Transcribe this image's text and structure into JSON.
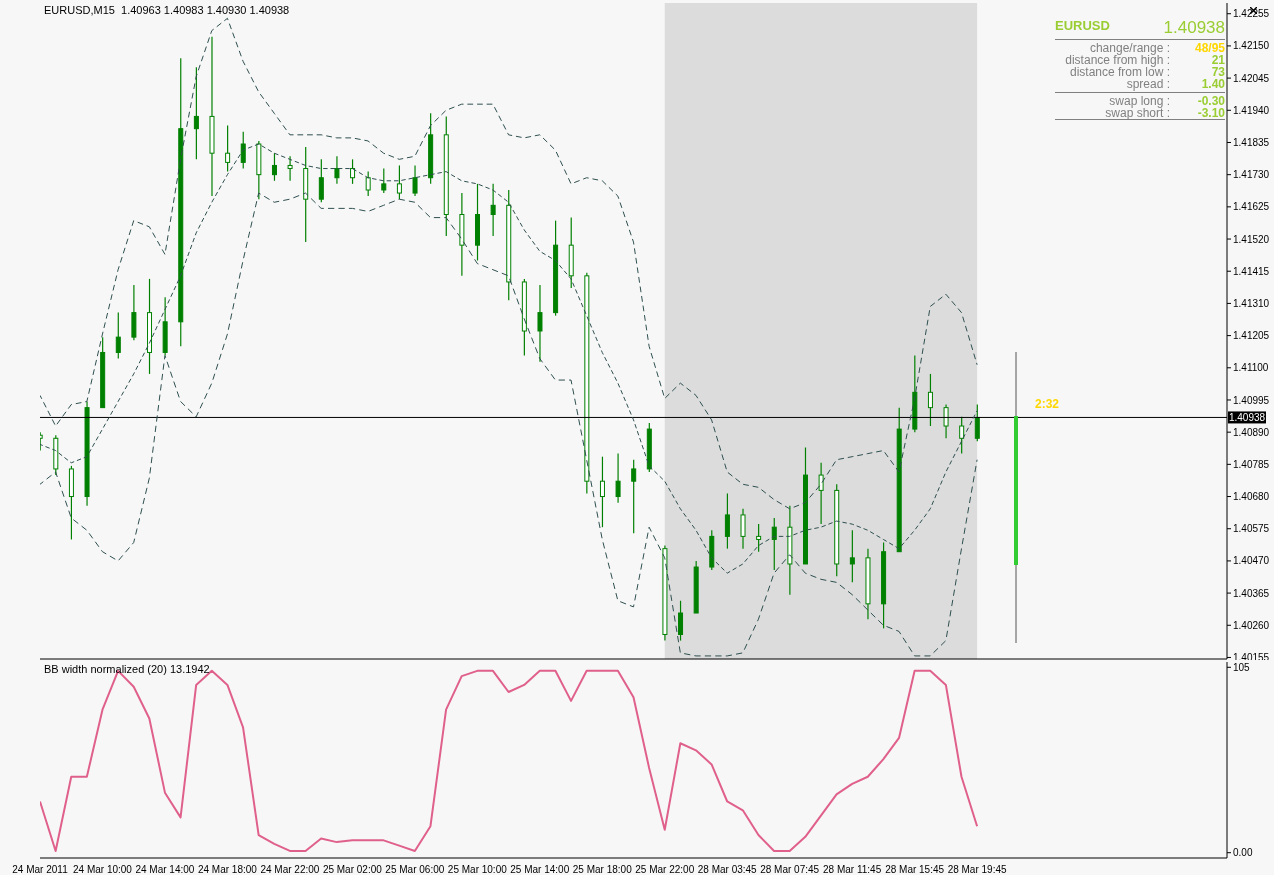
{
  "chart_data": [
    {
      "type": "candlestick",
      "title": "EURUSD,M15  1.40963 1.40983 1.40930 1.40938",
      "categories": [
        "24 Mar 2011",
        null,
        null,
        null,
        "24 Mar 10:00",
        null,
        null,
        null,
        "24 Mar 14:00",
        null,
        null,
        null,
        "24 Mar 18:00",
        null,
        null,
        null,
        "24 Mar 22:00",
        null,
        null,
        null,
        "25 Mar 02:00",
        null,
        null,
        null,
        "25 Mar 06:00",
        null,
        null,
        null,
        "25 Mar 10:00",
        null,
        null,
        null,
        "25 Mar 14:00",
        null,
        null,
        null,
        "25 Mar 18:00",
        null,
        null,
        null,
        "25 Mar 22:00",
        null,
        null,
        null,
        "28 Mar 03:45",
        null,
        null,
        null,
        "28 Mar 07:45",
        null,
        null,
        null,
        "28 Mar 11:45",
        null,
        null,
        null,
        "28 Mar 15:45",
        null,
        null,
        null,
        "28 Mar 19:45",
        null,
        null,
        null,
        null,
        null,
        null,
        null,
        null,
        null,
        null,
        null,
        null,
        null,
        null,
        null,
        null
      ],
      "color": "#008000",
      "ohlc": [
        [
          1.4088,
          1.4089,
          1.4083,
          1.4087
        ],
        [
          1.4087,
          1.4088,
          1.4075,
          1.4077
        ],
        [
          1.4077,
          1.4078,
          1.4054,
          1.4068
        ],
        [
          1.4068,
          1.4099,
          1.4065,
          1.4097
        ],
        [
          1.4097,
          1.412,
          1.4097,
          1.4115
        ],
        [
          1.4115,
          1.4128,
          1.4113,
          1.412
        ],
        [
          1.412,
          1.4137,
          1.4119,
          1.4128
        ],
        [
          1.4128,
          1.4139,
          1.4108,
          1.4115
        ],
        [
          1.4115,
          1.4133,
          1.4114,
          1.4125
        ],
        [
          1.4125,
          1.4211,
          1.4117,
          1.4188
        ],
        [
          1.4188,
          1.4208,
          1.4178,
          1.4192
        ],
        [
          1.4192,
          1.4218,
          1.4166,
          1.418
        ],
        [
          1.418,
          1.4189,
          1.4174,
          1.4177
        ],
        [
          1.4177,
          1.4187,
          1.4175,
          1.4183
        ],
        [
          1.4183,
          1.4184,
          1.4165,
          1.4173
        ],
        [
          1.4173,
          1.418,
          1.4171,
          1.4176
        ],
        [
          1.4176,
          1.4179,
          1.4171,
          1.4175
        ],
        [
          1.4175,
          1.4182,
          1.4151,
          1.4165
        ],
        [
          1.4165,
          1.4178,
          1.4164,
          1.4172
        ],
        [
          1.4172,
          1.4179,
          1.417,
          1.4175
        ],
        [
          1.4175,
          1.4178,
          1.417,
          1.4172
        ],
        [
          1.4172,
          1.4174,
          1.4166,
          1.4168
        ],
        [
          1.4168,
          1.4175,
          1.4167,
          1.417
        ],
        [
          1.417,
          1.4176,
          1.4165,
          1.4167
        ],
        [
          1.4167,
          1.4176,
          1.4166,
          1.4172
        ],
        [
          1.4172,
          1.4193,
          1.417,
          1.4186
        ],
        [
          1.4186,
          1.4192,
          1.4153,
          1.416
        ],
        [
          1.416,
          1.4167,
          1.414,
          1.415
        ],
        [
          1.415,
          1.417,
          1.4145,
          1.416
        ],
        [
          1.416,
          1.417,
          1.4153,
          1.4163
        ],
        [
          1.4163,
          1.4168,
          1.4132,
          1.4138
        ],
        [
          1.4138,
          1.4139,
          1.4114,
          1.4122
        ],
        [
          1.4122,
          1.4137,
          1.4112,
          1.4128
        ],
        [
          1.4128,
          1.4158,
          1.4127,
          1.415
        ],
        [
          1.415,
          1.4159,
          1.4136,
          1.414
        ],
        [
          1.414,
          1.4141,
          1.4069,
          1.4073
        ],
        [
          1.4073,
          1.4081,
          1.4058,
          1.4068
        ],
        [
          1.4068,
          1.4082,
          1.4066,
          1.4073
        ],
        [
          1.4073,
          1.408,
          1.4056,
          1.4077
        ],
        [
          1.4077,
          1.4092,
          1.4076,
          1.409
        ],
        [
          1.4051,
          1.4052,
          1.4021,
          1.4023
        ],
        [
          1.4023,
          1.4034,
          1.4021,
          1.403
        ],
        [
          1.403,
          1.4047,
          1.403,
          1.4045
        ],
        [
          1.4045,
          1.4057,
          1.4044,
          1.4055
        ],
        [
          1.4055,
          1.4069,
          1.4051,
          1.4062
        ],
        [
          1.4062,
          1.4064,
          1.4051,
          1.4055
        ],
        [
          1.4055,
          1.4059,
          1.405,
          1.4054
        ],
        [
          1.4054,
          1.4061,
          1.4044,
          1.4058
        ],
        [
          1.4058,
          1.4065,
          1.4036,
          1.4046
        ],
        [
          1.4046,
          1.4084,
          1.4046,
          1.4075
        ],
        [
          1.4075,
          1.4079,
          1.4059,
          1.407
        ],
        [
          1.407,
          1.4072,
          1.4042,
          1.4046
        ],
        [
          1.4046,
          1.4057,
          1.404,
          1.4048
        ],
        [
          1.4048,
          1.4051,
          1.4028,
          1.4033
        ],
        [
          1.4033,
          1.4053,
          1.4025,
          1.405
        ],
        [
          1.405,
          1.4097,
          1.405,
          1.409
        ],
        [
          1.409,
          1.4114,
          1.4089,
          1.4102
        ],
        [
          1.4102,
          1.4108,
          1.4091,
          1.4097
        ],
        [
          1.4097,
          1.4098,
          1.4087,
          1.4091
        ],
        [
          1.4091,
          1.4094,
          1.4082,
          1.4087
        ],
        [
          1.4087,
          1.4098,
          1.4086,
          1.40938
        ],
        null,
        null,
        null,
        null,
        null,
        null,
        null,
        null,
        null,
        null,
        null,
        null,
        null,
        null,
        null,
        null
      ],
      "line_style": "dashed",
      "series": [
        {
          "type": "line",
          "color": "#2f4f4f",
          "values": [
            1.4101,
            1.4091,
            1.4098,
            1.4099,
            1.4121,
            1.4142,
            1.4158,
            1.4156,
            1.4147,
            1.4178,
            1.4205,
            1.422,
            1.4224,
            1.421,
            1.42,
            1.4193,
            1.4186,
            1.4186,
            1.4186,
            1.4185,
            1.4185,
            1.4184,
            1.418,
            1.4178,
            1.4179,
            1.4189,
            1.4194,
            1.4196,
            1.4196,
            1.4196,
            1.4186,
            1.4185,
            1.4186,
            1.4181,
            1.417,
            1.4172,
            1.4171,
            1.4166,
            1.4151,
            1.4117,
            1.41,
            1.4105,
            1.4101,
            1.4093,
            1.4076,
            1.4072,
            1.4071,
            1.4067,
            1.4064,
            1.4066,
            1.4072,
            1.408,
            1.4081,
            1.4082,
            1.4083,
            1.4076,
            1.41,
            1.413,
            1.4134,
            1.4128,
            1.4111,
            null,
            null,
            null,
            null,
            null,
            null,
            null,
            null,
            null,
            null,
            null,
            null,
            null,
            null,
            null,
            null
          ]
        },
        {
          "type": "line",
          "color": "#2f4f4f",
          "values": [
            1.4085,
            1.4083,
            1.4079,
            1.4081,
            1.409,
            1.4099,
            1.4108,
            1.4118,
            1.4129,
            1.414,
            1.4154,
            1.4164,
            1.4173,
            1.4181,
            1.4183,
            1.418,
            1.4178,
            1.4176,
            1.4175,
            1.4175,
            1.4175,
            1.4172,
            1.4171,
            1.4171,
            1.4172,
            1.4173,
            1.4174,
            1.4171,
            1.417,
            1.4168,
            1.4164,
            1.4155,
            1.4148,
            1.4145,
            1.4139,
            1.4127,
            1.4115,
            1.4105,
            1.4093,
            1.4078,
            1.4073,
            1.4064,
            1.4057,
            1.4048,
            1.4043,
            1.4046,
            1.4052,
            1.4055,
            1.4055,
            1.4057,
            1.4058,
            1.406,
            1.4059,
            1.4057,
            1.4054,
            1.4051,
            1.4057,
            1.4064,
            1.4076,
            1.4086,
            1.4096,
            null,
            null,
            null,
            null,
            null,
            null,
            null,
            null,
            null,
            null,
            null,
            null,
            null,
            null,
            null,
            null
          ]
        },
        {
          "type": "line",
          "color": "#2f4f4f",
          "values": [
            1.4072,
            1.4076,
            1.4061,
            1.4057,
            1.405,
            1.4047,
            1.4053,
            1.4074,
            1.4114,
            1.4099,
            1.4094,
            1.4105,
            1.4121,
            1.4145,
            1.4167,
            1.4164,
            1.4165,
            1.4167,
            1.4162,
            1.4162,
            1.4162,
            1.4161,
            1.4163,
            1.4165,
            1.4164,
            1.4159,
            1.4159,
            1.4152,
            1.4144,
            1.4142,
            1.414,
            1.4126,
            1.4113,
            1.4106,
            1.4106,
            1.408,
            1.4054,
            1.4034,
            1.4032,
            1.4058,
            1.4048,
            1.4017,
            1.4016,
            1.4016,
            1.4016,
            1.4017,
            1.4028,
            1.4043,
            1.4049,
            1.4043,
            1.4041,
            1.404,
            1.4036,
            1.4031,
            1.4026,
            1.4024,
            1.4016,
            1.4016,
            1.4021,
            1.4051,
            1.408,
            null,
            null,
            null,
            null,
            null,
            null,
            null,
            null,
            null,
            null,
            null,
            null,
            null,
            null,
            null,
            null
          ]
        }
      ],
      "ylim": [
        1.4015,
        1.4229
      ],
      "yticks": [
        1.42255,
        {
          "value": 1.4215,
          "label": "1.42150"
        },
        1.42045,
        {
          "value": 1.4194,
          "label": "1.41940"
        },
        1.41835,
        {
          "value": 1.4173,
          "label": "1.41730"
        },
        1.41625,
        {
          "value": 1.4152,
          "label": "1.41520"
        },
        1.41415,
        {
          "value": 1.4131,
          "label": "1.41310"
        },
        1.41205,
        {
          "value": 1.411,
          "label": "1.41100"
        },
        1.40995,
        {
          "value": 1.4089,
          "label": "1.40890"
        },
        1.40785,
        {
          "value": 1.4068,
          "label": "1.40680"
        },
        1.40575,
        {
          "value": 1.4047,
          "label": "1.40470"
        },
        1.40365,
        {
          "value": 1.4026,
          "label": "1.40260"
        },
        1.40155
      ],
      "tick_labels": "y",
      "ref_lines": [
        {
          "axis": "y",
          "value": 1.40938,
          "label": "1.40938",
          "color": "#000000"
        }
      ],
      "bands": [
        {
          "axis": "x",
          "from": "25 Mar 22:00",
          "to": "28 Mar 19:45",
          "color": "#dcdcdc"
        }
      ],
      "annotations": [
        "EURUSD",
        "1.40938",
        "change/range :",
        "48/95",
        "distance from high :",
        "21",
        "distance from low :",
        "73",
        "spread :",
        "1.40",
        "swap long :",
        "-0.30",
        "swap short :",
        "-3.10",
        "2:32"
      ]
    },
    {
      "type": "line",
      "title": "BB width normalized (20) 13.1942",
      "categories": [
        "24 Mar 2011",
        null,
        null,
        null,
        "24 Mar 10:00",
        null,
        null,
        null,
        "24 Mar 14:00",
        null,
        null,
        null,
        "24 Mar 18:00",
        null,
        null,
        null,
        "24 Mar 22:00",
        null,
        null,
        null,
        "25 Mar 02:00",
        null,
        null,
        null,
        "25 Mar 06:00",
        null,
        null,
        null,
        "25 Mar 10:00",
        null,
        null,
        null,
        "25 Mar 14:00",
        null,
        null,
        null,
        "25 Mar 18:00",
        null,
        null,
        null,
        "25 Mar 22:00",
        null,
        null,
        null,
        "28 Mar 03:45",
        null,
        null,
        null,
        "28 Mar 07:45",
        null,
        null,
        null,
        "28 Mar 11:45",
        null,
        null,
        null,
        "28 Mar 15:45",
        null,
        null,
        null,
        "28 Mar 19:45",
        null,
        null,
        null,
        null,
        null,
        null,
        null,
        null,
        null,
        null,
        null,
        null,
        null,
        null,
        null,
        null
      ],
      "color": "#e0608c",
      "values": [
        29,
        1,
        43,
        43,
        81,
        103,
        94,
        76,
        34,
        20,
        95,
        103,
        95,
        71,
        10,
        5,
        1,
        1,
        8,
        6,
        7,
        7,
        7,
        4,
        1,
        15,
        81,
        100,
        103,
        103,
        91,
        95,
        103,
        103,
        86,
        103,
        103,
        103,
        88,
        48,
        13,
        62,
        58,
        50,
        29,
        24,
        10,
        1,
        1,
        9,
        21,
        33,
        39,
        43,
        53,
        65,
        103,
        103,
        95,
        43,
        15,
        null,
        null,
        null,
        null,
        null,
        null,
        null,
        null,
        null,
        null,
        null,
        null,
        null,
        null,
        null,
        null
      ],
      "ylim": [
        -3,
        108
      ],
      "yticks": [
        105,
        {
          "value": 0,
          "label": "0.00"
        }
      ]
    }
  ]
}
